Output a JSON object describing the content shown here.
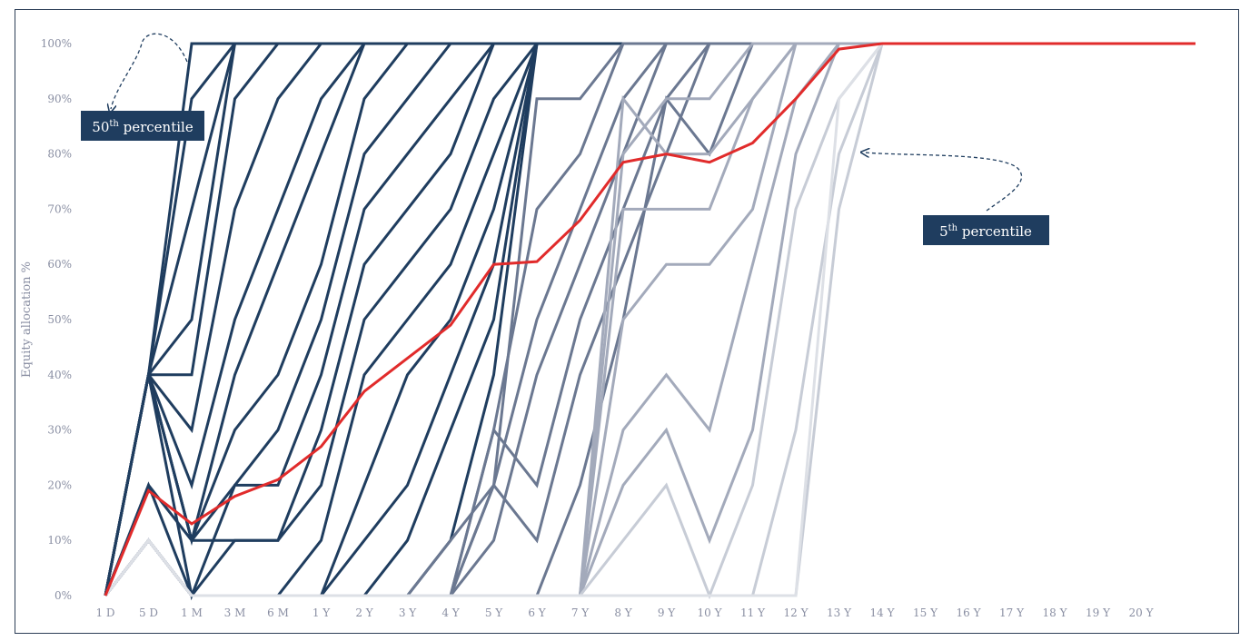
{
  "chart_data": {
    "type": "line",
    "ylabel": "Equity allocation %",
    "categories": [
      "1 D",
      "5 D",
      "1 M",
      "3 M",
      "6 M",
      "1 Y",
      "2 Y",
      "3 Y",
      "4 Y",
      "5 Y",
      "6 Y",
      "7 Y",
      "8 Y",
      "9 Y",
      "10 Y",
      "11 Y",
      "12 Y",
      "13 Y",
      "14 Y",
      "15 Y",
      "16 Y",
      "17 Y",
      "18 Y",
      "19 Y",
      "20 Y"
    ],
    "ylim": [
      0,
      100
    ],
    "yticks": [
      "0%",
      "10%",
      "20%",
      "30%",
      "40%",
      "50%",
      "60%",
      "70%",
      "80%",
      "90%",
      "100%"
    ],
    "series_colors": [
      "#1f3d5f",
      "#6b7891",
      "#a3aabb",
      "#c7ccd6",
      "#e12b2b"
    ],
    "highlight": {
      "color": "#e12b2b",
      "values": [
        0,
        19,
        13,
        18,
        21,
        27,
        37,
        43,
        49,
        60,
        60.5,
        68,
        78.5,
        80,
        78.5,
        82,
        90,
        99,
        100,
        100,
        100,
        100,
        100,
        100,
        100
      ]
    },
    "paths": [
      {
        "color": "#1f3d5f",
        "values": [
          0,
          40,
          100,
          100,
          100,
          100,
          100,
          100,
          100,
          100,
          100,
          100,
          100,
          100,
          100,
          100,
          100,
          100,
          100,
          100,
          100,
          100,
          100,
          100,
          100
        ]
      },
      {
        "color": "#1f3d5f",
        "values": [
          0,
          40,
          90,
          100,
          100,
          100,
          100,
          100,
          100,
          100,
          100,
          100,
          100,
          100,
          100,
          100,
          100,
          100,
          100,
          100,
          100,
          100,
          100,
          100,
          100
        ]
      },
      {
        "color": "#1f3d5f",
        "values": [
          0,
          40,
          70,
          100,
          100,
          100,
          100,
          100,
          100,
          100,
          100,
          100,
          100,
          100,
          100,
          100,
          100,
          100,
          100,
          100,
          100,
          100,
          100,
          100,
          100
        ]
      },
      {
        "color": "#1f3d5f",
        "values": [
          0,
          40,
          50,
          100,
          100,
          100,
          100,
          100,
          100,
          100,
          100,
          100,
          100,
          100,
          100,
          100,
          100,
          100,
          100,
          100,
          100,
          100,
          100,
          100,
          100
        ]
      },
      {
        "color": "#1f3d5f",
        "values": [
          0,
          40,
          40,
          90,
          100,
          100,
          100,
          100,
          100,
          100,
          100,
          100,
          100,
          100,
          100,
          100,
          100,
          100,
          100,
          100,
          100,
          100,
          100,
          100,
          100
        ]
      },
      {
        "color": "#1f3d5f",
        "values": [
          0,
          40,
          30,
          70,
          90,
          100,
          100,
          100,
          100,
          100,
          100,
          100,
          100,
          100,
          100,
          100,
          100,
          100,
          100,
          100,
          100,
          100,
          100,
          100,
          100
        ]
      },
      {
        "color": "#1f3d5f",
        "values": [
          0,
          40,
          20,
          50,
          70,
          90,
          100,
          100,
          100,
          100,
          100,
          100,
          100,
          100,
          100,
          100,
          100,
          100,
          100,
          100,
          100,
          100,
          100,
          100,
          100
        ]
      },
      {
        "color": "#1f3d5f",
        "values": [
          0,
          40,
          10,
          40,
          60,
          80,
          100,
          100,
          100,
          100,
          100,
          100,
          100,
          100,
          100,
          100,
          100,
          100,
          100,
          100,
          100,
          100,
          100,
          100,
          100
        ]
      },
      {
        "color": "#1f3d5f",
        "values": [
          0,
          40,
          10,
          30,
          40,
          60,
          90,
          100,
          100,
          100,
          100,
          100,
          100,
          100,
          100,
          100,
          100,
          100,
          100,
          100,
          100,
          100,
          100,
          100,
          100
        ]
      },
      {
        "color": "#1f3d5f",
        "values": [
          0,
          40,
          10,
          20,
          30,
          50,
          80,
          90,
          100,
          100,
          100,
          100,
          100,
          100,
          100,
          100,
          100,
          100,
          100,
          100,
          100,
          100,
          100,
          100,
          100
        ]
      },
      {
        "color": "#1f3d5f",
        "values": [
          0,
          40,
          0,
          20,
          20,
          40,
          70,
          80,
          90,
          100,
          100,
          100,
          100,
          100,
          100,
          100,
          100,
          100,
          100,
          100,
          100,
          100,
          100,
          100,
          100
        ]
      },
      {
        "color": "#1f3d5f",
        "values": [
          0,
          20,
          10,
          10,
          10,
          30,
          60,
          70,
          80,
          100,
          100,
          100,
          100,
          100,
          100,
          100,
          100,
          100,
          100,
          100,
          100,
          100,
          100,
          100,
          100
        ]
      },
      {
        "color": "#1f3d5f",
        "values": [
          0,
          20,
          0,
          10,
          10,
          20,
          50,
          60,
          70,
          90,
          100,
          100,
          100,
          100,
          100,
          100,
          100,
          100,
          100,
          100,
          100,
          100,
          100,
          100,
          100
        ]
      },
      {
        "color": "#1f3d5f",
        "values": [
          0,
          10,
          0,
          0,
          0,
          10,
          40,
          50,
          60,
          80,
          100,
          100,
          100,
          100,
          100,
          100,
          100,
          100,
          100,
          100,
          100,
          100,
          100,
          100,
          100
        ]
      },
      {
        "color": "#1f3d5f",
        "values": [
          0,
          10,
          0,
          0,
          0,
          0,
          20,
          40,
          50,
          70,
          100,
          100,
          100,
          100,
          100,
          100,
          100,
          100,
          100,
          100,
          100,
          100,
          100,
          100,
          100
        ]
      },
      {
        "color": "#1f3d5f",
        "values": [
          0,
          10,
          0,
          0,
          0,
          0,
          10,
          20,
          40,
          60,
          100,
          100,
          100,
          100,
          100,
          100,
          100,
          100,
          100,
          100,
          100,
          100,
          100,
          100,
          100
        ]
      },
      {
        "color": "#1f3d5f",
        "values": [
          0,
          10,
          0,
          0,
          0,
          0,
          0,
          10,
          30,
          50,
          100,
          100,
          100,
          100,
          100,
          100,
          100,
          100,
          100,
          100,
          100,
          100,
          100,
          100,
          100
        ]
      },
      {
        "color": "#1f3d5f",
        "values": [
          0,
          10,
          0,
          0,
          0,
          0,
          0,
          0,
          10,
          40,
          100,
          100,
          100,
          100,
          100,
          100,
          100,
          100,
          100,
          100,
          100,
          100,
          100,
          100,
          100
        ]
      },
      {
        "color": "#6b7891",
        "values": [
          0,
          10,
          0,
          0,
          0,
          0,
          0,
          0,
          0,
          20,
          90,
          90,
          100,
          100,
          100,
          100,
          100,
          100,
          100,
          100,
          100,
          100,
          100,
          100,
          100
        ]
      },
      {
        "color": "#6b7891",
        "values": [
          0,
          10,
          0,
          0,
          0,
          0,
          0,
          0,
          0,
          30,
          70,
          80,
          100,
          100,
          100,
          100,
          100,
          100,
          100,
          100,
          100,
          100,
          100,
          100,
          100
        ]
      },
      {
        "color": "#6b7891",
        "values": [
          0,
          10,
          0,
          0,
          0,
          0,
          0,
          0,
          10,
          20,
          50,
          70,
          90,
          100,
          100,
          100,
          100,
          100,
          100,
          100,
          100,
          100,
          100,
          100,
          100
        ]
      },
      {
        "color": "#6b7891",
        "values": [
          0,
          10,
          0,
          0,
          0,
          0,
          0,
          0,
          0,
          10,
          40,
          60,
          80,
          100,
          100,
          100,
          100,
          100,
          100,
          100,
          100,
          100,
          100,
          100,
          100
        ]
      },
      {
        "color": "#6b7891",
        "values": [
          0,
          10,
          0,
          0,
          0,
          0,
          0,
          0,
          0,
          30,
          20,
          50,
          70,
          90,
          100,
          100,
          100,
          100,
          100,
          100,
          100,
          100,
          100,
          100,
          100
        ]
      },
      {
        "color": "#6b7891",
        "values": [
          0,
          10,
          0,
          0,
          0,
          0,
          0,
          0,
          0,
          20,
          10,
          40,
          60,
          80,
          100,
          100,
          100,
          100,
          100,
          100,
          100,
          100,
          100,
          100,
          100
        ]
      },
      {
        "color": "#6b7891",
        "values": [
          0,
          10,
          0,
          0,
          0,
          0,
          0,
          0,
          0,
          0,
          0,
          20,
          50,
          90,
          80,
          100,
          100,
          100,
          100,
          100,
          100,
          100,
          100,
          100,
          100
        ]
      },
      {
        "color": "#a3aabb",
        "values": [
          0,
          10,
          0,
          0,
          0,
          0,
          0,
          0,
          0,
          0,
          0,
          0,
          80,
          90,
          90,
          100,
          100,
          100,
          100,
          100,
          100,
          100,
          100,
          100,
          100
        ]
      },
      {
        "color": "#a3aabb",
        "values": [
          0,
          10,
          0,
          0,
          0,
          0,
          0,
          0,
          0,
          0,
          0,
          0,
          90,
          80,
          80,
          90,
          100,
          100,
          100,
          100,
          100,
          100,
          100,
          100,
          100
        ]
      },
      {
        "color": "#a3aabb",
        "values": [
          0,
          10,
          0,
          0,
          0,
          0,
          0,
          0,
          0,
          0,
          0,
          0,
          70,
          70,
          70,
          90,
          100,
          100,
          100,
          100,
          100,
          100,
          100,
          100,
          100
        ]
      },
      {
        "color": "#a3aabb",
        "values": [
          0,
          10,
          0,
          0,
          0,
          0,
          0,
          0,
          0,
          0,
          0,
          0,
          50,
          60,
          60,
          70,
          100,
          100,
          100,
          100,
          100,
          100,
          100,
          100,
          100
        ]
      },
      {
        "color": "#a3aabb",
        "values": [
          0,
          10,
          0,
          0,
          0,
          0,
          0,
          0,
          0,
          0,
          0,
          0,
          30,
          40,
          30,
          60,
          90,
          100,
          100,
          100,
          100,
          100,
          100,
          100,
          100
        ]
      },
      {
        "color": "#a3aabb",
        "values": [
          0,
          10,
          0,
          0,
          0,
          0,
          0,
          0,
          0,
          0,
          0,
          0,
          20,
          30,
          10,
          30,
          80,
          100,
          100,
          100,
          100,
          100,
          100,
          100,
          100
        ]
      },
      {
        "color": "#c7ccd6",
        "values": [
          0,
          10,
          0,
          0,
          0,
          0,
          0,
          0,
          0,
          0,
          0,
          0,
          10,
          20,
          0,
          20,
          70,
          90,
          100,
          100,
          100,
          100,
          100,
          100,
          100
        ]
      },
      {
        "color": "#c7ccd6",
        "values": [
          0,
          10,
          0,
          0,
          0,
          0,
          0,
          0,
          0,
          0,
          0,
          0,
          0,
          0,
          0,
          0,
          30,
          80,
          100,
          100,
          100,
          100,
          100,
          100,
          100
        ]
      },
      {
        "color": "#c7ccd6",
        "values": [
          0,
          10,
          0,
          0,
          0,
          0,
          0,
          0,
          0,
          0,
          0,
          0,
          0,
          0,
          0,
          0,
          0,
          70,
          100,
          100,
          100,
          100,
          100,
          100,
          100
        ]
      },
      {
        "color": "#dde0e6",
        "values": [
          0,
          10,
          0,
          0,
          0,
          0,
          0,
          0,
          0,
          0,
          0,
          0,
          0,
          0,
          0,
          0,
          0,
          90,
          100,
          100,
          100,
          100,
          100,
          100,
          100
        ]
      }
    ],
    "annotations": [
      {
        "base": "50",
        "sup": "th",
        "text": " percentile"
      },
      {
        "base": "5",
        "sup": "th",
        "text": " percentile"
      }
    ]
  }
}
